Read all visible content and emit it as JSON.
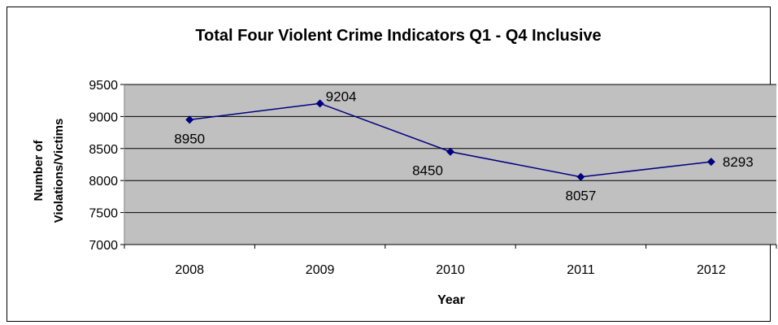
{
  "chart_data": {
    "type": "line",
    "title": "Total Four Violent Crime Indicators Q1 - Q4 Inclusive",
    "xlabel": "Year",
    "ylabel_lines": [
      "Number of",
      "Violations/Victims"
    ],
    "categories": [
      "2008",
      "2009",
      "2010",
      "2011",
      "2012"
    ],
    "series": [
      {
        "values": [
          8950,
          9204,
          8450,
          8057,
          8293
        ]
      }
    ],
    "data_labels": [
      "8950",
      "9204",
      "8450",
      "8057",
      "8293"
    ],
    "yticks": [
      7000,
      7500,
      8000,
      8500,
      9000,
      9500
    ],
    "ytick_labels": [
      "7000",
      "7500",
      "8000",
      "8500",
      "9000",
      "9500"
    ],
    "ylim": [
      7000,
      9500
    ],
    "grid": true,
    "legend": "none",
    "colors": {
      "line": "#000080",
      "marker": "#000080",
      "plot_bg": "#c0c0c0",
      "grid": "#000000"
    }
  }
}
